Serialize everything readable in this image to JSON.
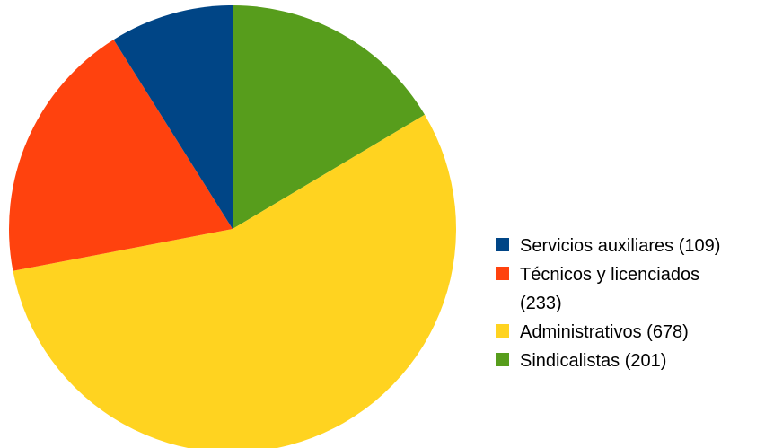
{
  "chart_data": {
    "type": "pie",
    "title": "",
    "start_angle_deg": 0,
    "direction": "clockwise",
    "legend_position": "right",
    "slices": [
      {
        "label": "Sindicalistas (201)",
        "value": 201,
        "color": "#579d1c"
      },
      {
        "label": "Administrativos (678)",
        "value": 678,
        "color": "#ffd320"
      },
      {
        "label": "Técnicos y licenciados (233)",
        "value": 233,
        "color": "#ff420e"
      },
      {
        "label": "Servicios auxiliares (109)",
        "value": 109,
        "color": "#004586"
      }
    ],
    "legend": [
      {
        "text": "Servicios auxiliares (109)",
        "color": "#004586"
      },
      {
        "text": "Técnicos y licenciados (233)",
        "color": "#ff420e"
      },
      {
        "text": "Administrativos (678)",
        "color": "#ffd320"
      },
      {
        "text": "Sindicalistas (201)",
        "color": "#579d1c"
      }
    ]
  }
}
